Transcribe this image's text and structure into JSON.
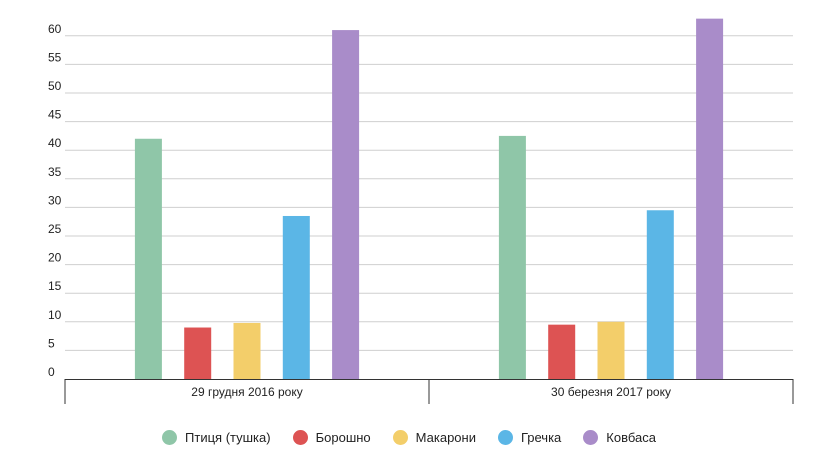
{
  "chart_data": {
    "type": "bar",
    "categories": [
      "29 грудня 2016 року",
      "30 березня 2017 року"
    ],
    "series": [
      {
        "name": "Птиця (тушка)",
        "color": "#8fc6a8",
        "values": [
          42,
          42.5
        ]
      },
      {
        "name": "Борошно",
        "color": "#dd5353",
        "values": [
          9,
          9.5
        ]
      },
      {
        "name": "Макарони",
        "color": "#f3ce6a",
        "values": [
          9.8,
          10
        ]
      },
      {
        "name": "Гречка",
        "color": "#5bb6e6",
        "values": [
          28.5,
          29.5
        ]
      },
      {
        "name": "Ковбаса",
        "color": "#a98cc9",
        "values": [
          61,
          63
        ]
      }
    ],
    "yticks": [
      "0",
      "5",
      "10",
      "15",
      "20",
      "25",
      "30",
      "35",
      "40",
      "45",
      "50",
      "55",
      "60"
    ],
    "ylim": [
      0,
      65
    ],
    "grid": true,
    "legend_position": "bottom"
  }
}
